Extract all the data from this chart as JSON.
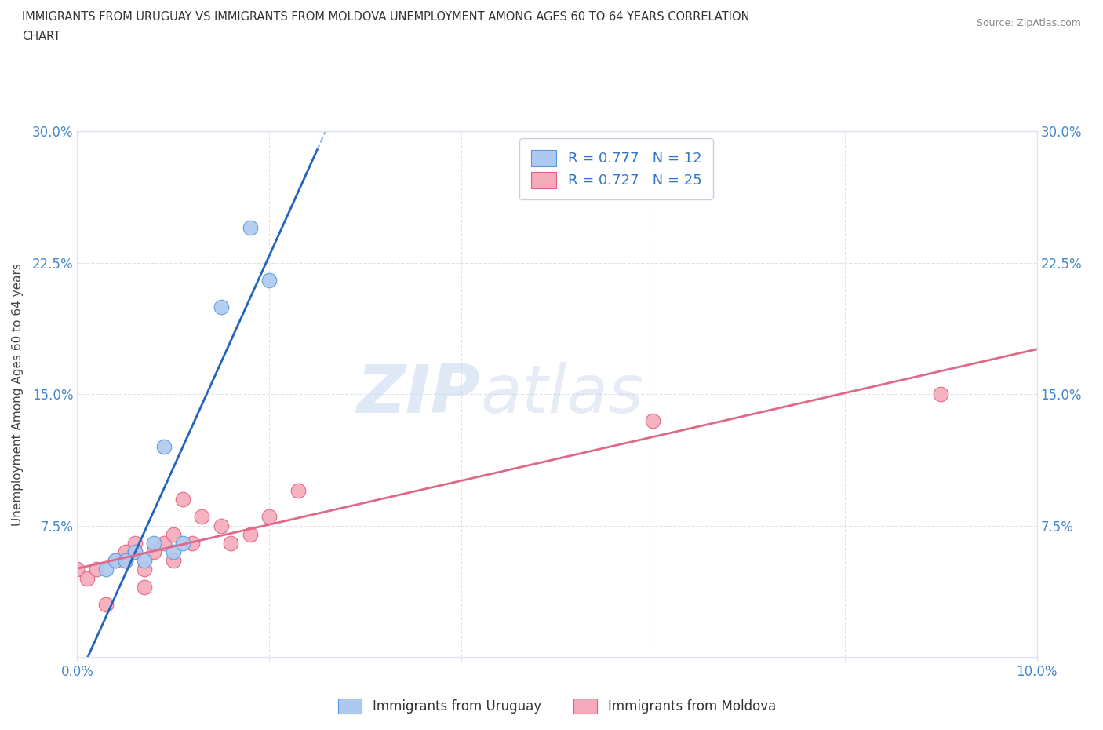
{
  "title_line1": "IMMIGRANTS FROM URUGUAY VS IMMIGRANTS FROM MOLDOVA UNEMPLOYMENT AMONG AGES 60 TO 64 YEARS CORRELATION",
  "title_line2": "CHART",
  "source": "Source: ZipAtlas.com",
  "ylabel": "Unemployment Among Ages 60 to 64 years",
  "xlim": [
    0.0,
    0.1
  ],
  "ylim": [
    0.0,
    0.3
  ],
  "xticks": [
    0.0,
    0.02,
    0.04,
    0.06,
    0.08,
    0.1
  ],
  "yticks": [
    0.0,
    0.075,
    0.15,
    0.225,
    0.3
  ],
  "xtick_labels": [
    "0.0%",
    "",
    "",
    "",
    "",
    "10.0%"
  ],
  "ytick_labels_left": [
    "",
    "7.5%",
    "15.0%",
    "22.5%",
    "30.0%"
  ],
  "ytick_labels_right": [
    "",
    "7.5%",
    "15.0%",
    "22.5%",
    "30.0%"
  ],
  "watermark_zip": "ZIP",
  "watermark_atlas": "atlas",
  "uruguay_fill": "#adc9ef",
  "uruguay_edge": "#5599dd",
  "moldova_fill": "#f5aabb",
  "moldova_edge": "#e06080",
  "uruguay_line_color": "#2266bb",
  "moldova_line_color": "#e06888",
  "uruguay_R": 0.777,
  "uruguay_N": 12,
  "moldova_R": 0.727,
  "moldova_N": 25,
  "uruguay_x": [
    0.003,
    0.004,
    0.005,
    0.006,
    0.007,
    0.008,
    0.009,
    0.01,
    0.011,
    0.015,
    0.018,
    0.02
  ],
  "uruguay_y": [
    0.05,
    0.055,
    0.055,
    0.06,
    0.055,
    0.065,
    0.12,
    0.06,
    0.065,
    0.2,
    0.245,
    0.215
  ],
  "moldova_x": [
    0.0,
    0.001,
    0.002,
    0.003,
    0.004,
    0.005,
    0.005,
    0.006,
    0.006,
    0.007,
    0.007,
    0.008,
    0.009,
    0.01,
    0.01,
    0.011,
    0.012,
    0.013,
    0.015,
    0.016,
    0.018,
    0.02,
    0.023,
    0.06,
    0.09
  ],
  "moldova_y": [
    0.05,
    0.045,
    0.05,
    0.03,
    0.055,
    0.055,
    0.06,
    0.06,
    0.065,
    0.05,
    0.04,
    0.06,
    0.065,
    0.055,
    0.07,
    0.09,
    0.065,
    0.08,
    0.075,
    0.065,
    0.07,
    0.08,
    0.095,
    0.135,
    0.15
  ],
  "grid_color": "#dde4ee",
  "bg_color": "#ffffff",
  "title_color": "#333333",
  "axis_tick_color": "#4488cc",
  "ylabel_color": "#444444",
  "legend_text_color": "#3377cc"
}
